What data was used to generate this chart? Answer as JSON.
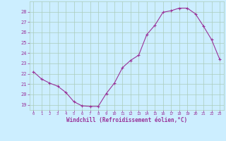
{
  "x": [
    0,
    1,
    2,
    3,
    4,
    5,
    6,
    7,
    8,
    9,
    10,
    11,
    12,
    13,
    14,
    15,
    16,
    17,
    18,
    19,
    20,
    21,
    22,
    23
  ],
  "y": [
    22.2,
    21.5,
    21.1,
    20.8,
    20.2,
    19.3,
    18.9,
    18.85,
    18.85,
    20.1,
    21.1,
    22.6,
    23.3,
    23.8,
    25.8,
    26.7,
    27.95,
    28.1,
    28.35,
    28.35,
    27.8,
    26.6,
    25.3,
    23.4
  ],
  "line_color": "#993399",
  "marker": "+",
  "bg_color": "#cceeff",
  "grid_color": "#aaccbb",
  "xlabel": "Windchill (Refroidissement éolien,°C)",
  "xlabel_color": "#993399",
  "tick_color": "#993399",
  "ylim": [
    18.5,
    29.0
  ],
  "yticks": [
    19,
    20,
    21,
    22,
    23,
    24,
    25,
    26,
    27,
    28
  ],
  "xticks": [
    0,
    1,
    2,
    3,
    4,
    5,
    6,
    7,
    8,
    9,
    10,
    11,
    12,
    13,
    14,
    15,
    16,
    17,
    18,
    19,
    20,
    21,
    22,
    23
  ],
  "figsize": [
    3.2,
    2.0
  ],
  "dpi": 100
}
